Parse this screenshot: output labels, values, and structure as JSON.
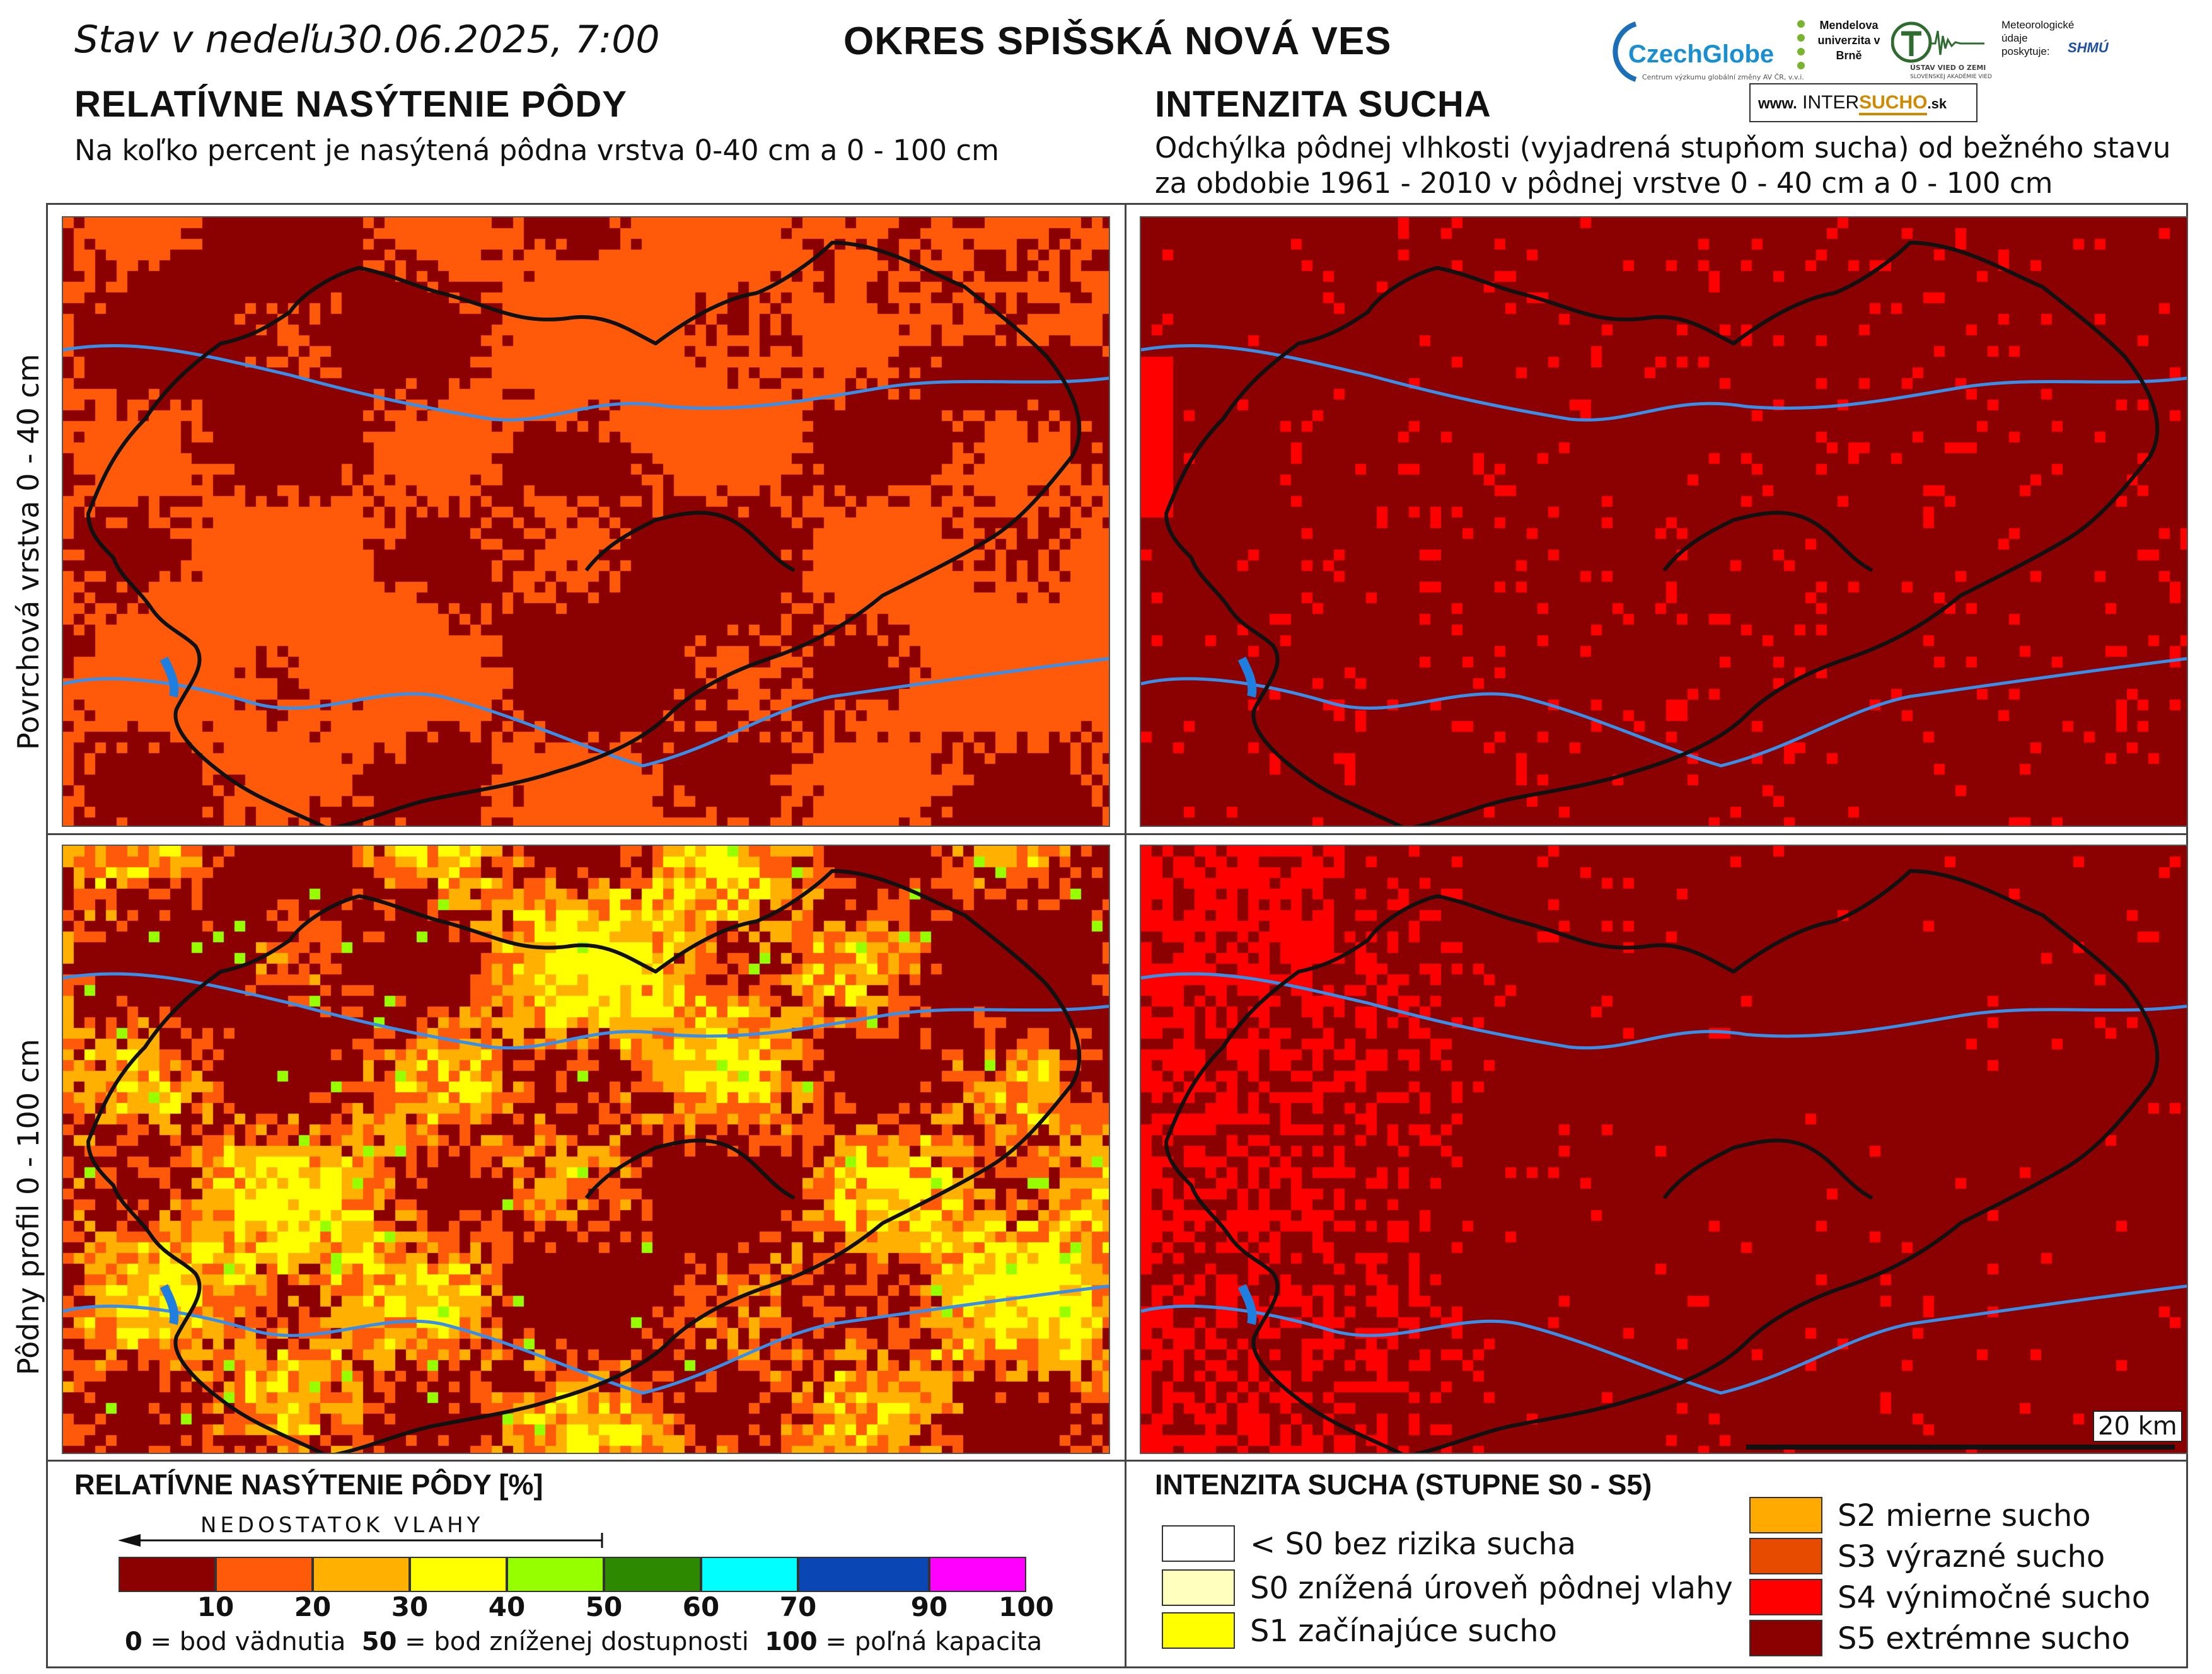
{
  "header": {
    "date_prefix": "Stav v nedeľu",
    "date": "30.06.2025, 7:00",
    "title": "OKRES  SPIŠSKÁ NOVÁ VES"
  },
  "left": {
    "title": "RELATÍVNE NASÝTENIE PÔDY",
    "subtitle": "Na koľko percent je nasýtená pôdna vrstva 0-40 cm a 0 - 100 cm"
  },
  "right": {
    "title": "INTENZITA SUCHA",
    "subtitle_line1": "Odchýlka pôdnej vlhkosti (vyjadrená stupňom sucha) od bežného stavu",
    "subtitle_line2": "za obdobie 1961 - 2010 v pôdnej vrstve 0 - 40 cm a 0 - 100 cm"
  },
  "logos": {
    "czechglobe": "CzechGlobe",
    "czechglobe_sub": "Centrum výzkumu globální změny AV ČR, v.v.i.",
    "mendel": "Mendelova univerzita v Brně",
    "uvz": "ÚSTAV VIED O ZEMI",
    "uvz_sub": "SLOVENSKEJ AKADÉMIE VIED",
    "met": "Meteorologické údaje poskytuje:",
    "shmu": "SHMÚ",
    "intersucho_www": "www.",
    "intersucho_a": "INTER",
    "intersucho_b": "SUCHO",
    "intersucho_c": ".sk"
  },
  "row_labels": {
    "top": "Povrchová vrstva 0 - 40 cm",
    "bottom": "Pôdny profil 0 - 100 cm"
  },
  "scale_bar": "20 km",
  "legend_left": {
    "title": "RELATÍVNE NASÝTENIE PÔDY [%]",
    "arrow_label": "NEDOSTATOK VLAHY",
    "bins": [
      {
        "color": "#8b0000"
      },
      {
        "color": "#ff5a0a"
      },
      {
        "color": "#ffb000"
      },
      {
        "color": "#ffff00"
      },
      {
        "color": "#96ff00"
      },
      {
        "color": "#2d8a00"
      },
      {
        "color": "#00ffff"
      },
      {
        "color": "#0a46b4"
      },
      {
        "color": "#ff00ff"
      }
    ],
    "ticks": [
      "10",
      "20",
      "30",
      "40",
      "50",
      "60",
      "70",
      "90",
      "100"
    ],
    "note_0": "0",
    "note_0_txt": " = bod vädnutia",
    "note_50": "50",
    "note_50_txt": " = bod zníženej dostupnosti",
    "note_100": "100",
    "note_100_txt": " = poľná kapacita"
  },
  "legend_right": {
    "title": "INTENZITA SUCHA (STUPNE S0 - S5)",
    "items": [
      {
        "label": "< S0 bez rizika sucha",
        "color": "#ffffff"
      },
      {
        "label": "S0 znížená úroveň pôdnej vlahy",
        "color": "#ffffbe"
      },
      {
        "label": "S1 začínajúce sucho",
        "color": "#ffff00"
      },
      {
        "label": "S2 mierne sucho",
        "color": "#ffaa00"
      },
      {
        "label": "S3 výrazné sucho",
        "color": "#e64b00"
      },
      {
        "label": "S4 výnimočné sucho",
        "color": "#ff0000"
      },
      {
        "label": "S5 extrémne sucho",
        "color": "#8b0000"
      }
    ]
  }
}
